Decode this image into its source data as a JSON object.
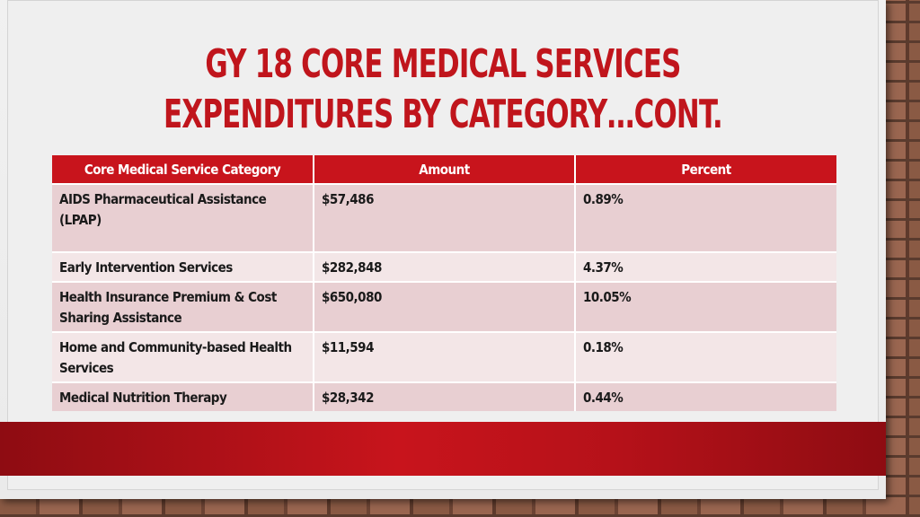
{
  "slide": {
    "title_line1": "GY 18 Core Medical Services",
    "title_line2": "Expenditures by Category…Cont."
  },
  "table": {
    "headers": [
      "Core Medical Service Category",
      "Amount",
      "Percent"
    ],
    "rows": [
      {
        "category": "AIDS Pharmaceutical Assistance (LPAP)",
        "amount": "$57,486",
        "percent": "0.89%"
      },
      {
        "category": "Early Intervention Services",
        "amount": "$282,848",
        "percent": "4.37%"
      },
      {
        "category": "Health Insurance Premium & Cost Sharing Assistance",
        "amount": "$650,080",
        "percent": "10.05%"
      },
      {
        "category": "Home and Community-based Health Services",
        "amount": "$11,594",
        "percent": "0.18%"
      },
      {
        "category": "Medical Nutrition Therapy",
        "amount": "$28,342",
        "percent": "0.44%"
      }
    ]
  },
  "colors": {
    "accent": "#c8141c",
    "row_dark": "#e8cfd2",
    "row_light": "#f3e6e7"
  }
}
